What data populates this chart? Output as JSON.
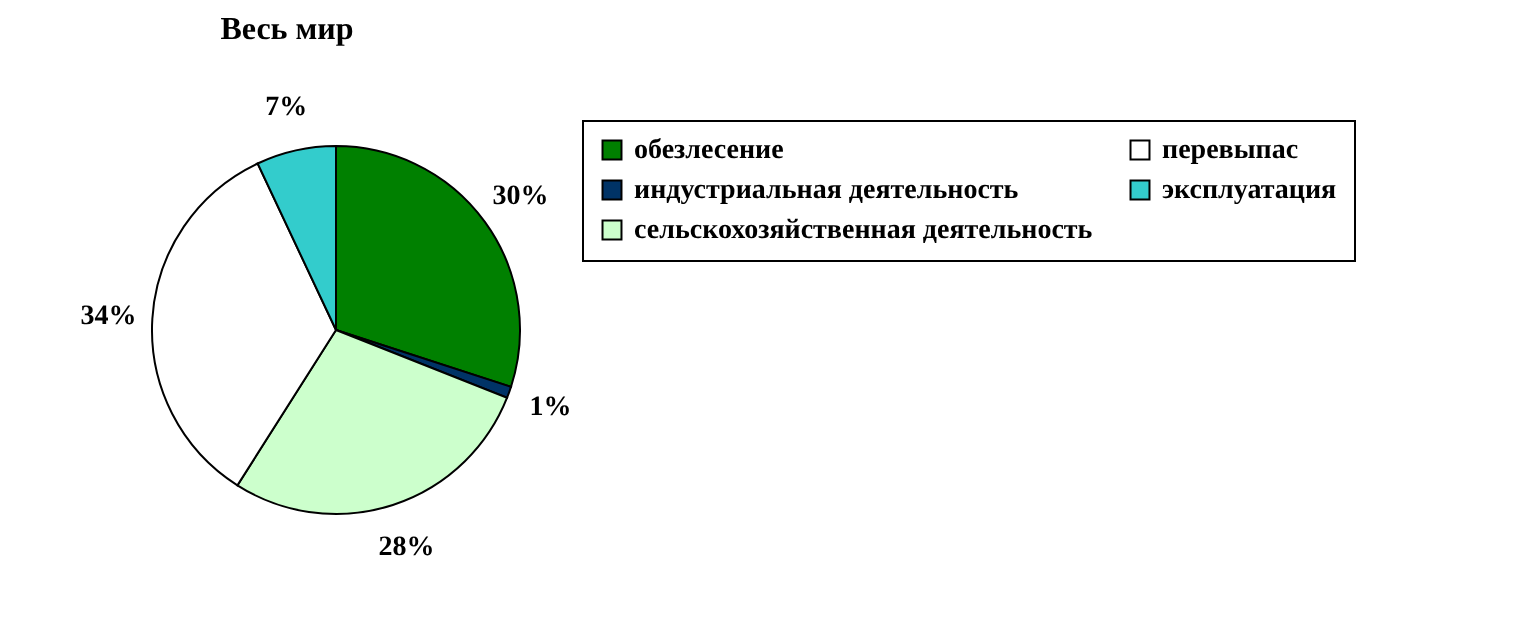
{
  "chart_data": {
    "type": "pie",
    "title": "Весь мир",
    "categories": [
      "обезлесение",
      "индустриальная деятельность",
      "сельскохозяйственная деятельность",
      "перевыпас",
      "эксплуатация"
    ],
    "values": [
      30,
      1,
      28,
      34,
      7
    ],
    "value_labels": [
      "30%",
      "1%",
      "28%",
      "34%",
      "7%"
    ],
    "colors": [
      "#008000",
      "#003366",
      "#ccffcc",
      "#ffffff",
      "#33cccc"
    ],
    "legend": "right"
  }
}
